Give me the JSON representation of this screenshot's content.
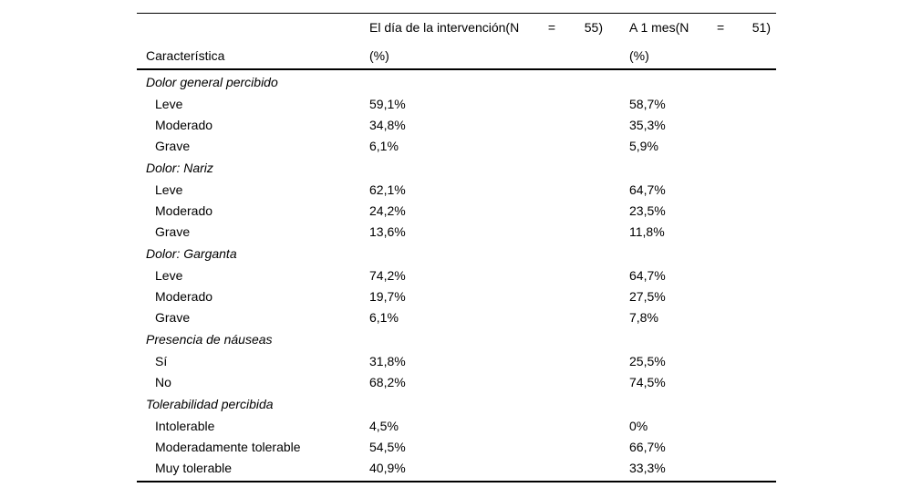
{
  "table": {
    "header": {
      "col1": "Característica",
      "col2": {
        "name": "El día de la intervención(N",
        "eq": "=",
        "n": "55)",
        "pct": "(%)"
      },
      "col3": {
        "name": "A 1 mes(N",
        "eq": "=",
        "n": "51)",
        "pct": "(%)"
      }
    },
    "sections": [
      {
        "title": "Dolor general percibido",
        "rows": [
          {
            "label": "Leve",
            "v1": "59,1%",
            "v2": "58,7%"
          },
          {
            "label": "Moderado",
            "v1": "34,8%",
            "v2": "35,3%"
          },
          {
            "label": "Grave",
            "v1": "6,1%",
            "v2": "5,9%"
          }
        ]
      },
      {
        "title": "Dolor: Nariz",
        "rows": [
          {
            "label": "Leve",
            "v1": "62,1%",
            "v2": "64,7%"
          },
          {
            "label": "Moderado",
            "v1": "24,2%",
            "v2": "23,5%"
          },
          {
            "label": "Grave",
            "v1": "13,6%",
            "v2": "11,8%"
          }
        ]
      },
      {
        "title": "Dolor: Garganta",
        "rows": [
          {
            "label": "Leve",
            "v1": "74,2%",
            "v2": "64,7%"
          },
          {
            "label": "Moderado",
            "v1": "19,7%",
            "v2": "27,5%"
          },
          {
            "label": "Grave",
            "v1": "6,1%",
            "v2": "7,8%"
          }
        ]
      },
      {
        "title": "Presencia de náuseas",
        "rows": [
          {
            "label": "Sí",
            "v1": "31,8%",
            "v2": "25,5%"
          },
          {
            "label": "No",
            "v1": "68,2%",
            "v2": "74,5%"
          }
        ]
      },
      {
        "title": "Tolerabilidad percibida",
        "rows": [
          {
            "label": "Intolerable",
            "v1": "4,5%",
            "v2": "0%"
          },
          {
            "label": "Moderadamente tolerable",
            "v1": "54,5%",
            "v2": "66,7%"
          },
          {
            "label": "Muy tolerable",
            "v1": "40,9%",
            "v2": "33,3%"
          }
        ]
      }
    ]
  }
}
